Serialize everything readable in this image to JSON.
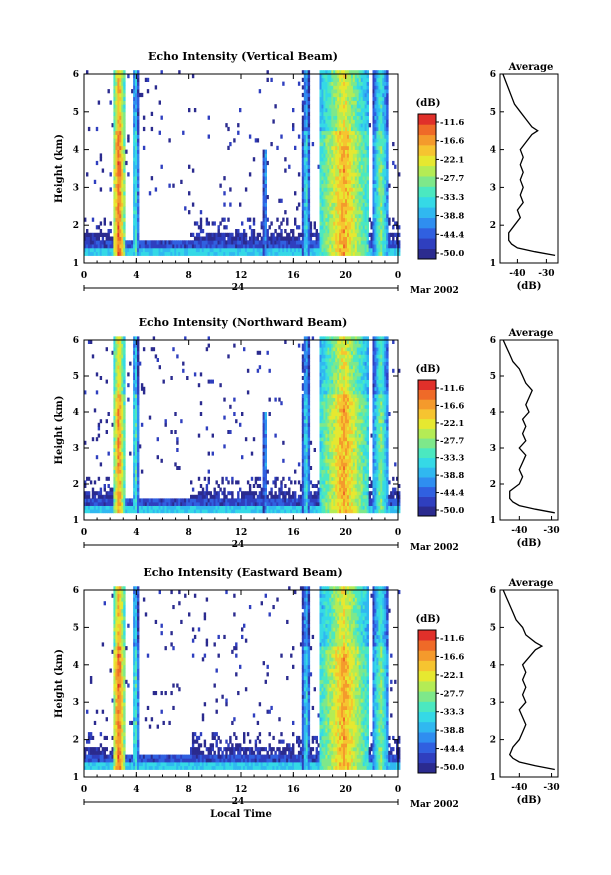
{
  "chart_data": [
    {
      "type": "heatmap",
      "title": "Echo Intensity (Vertical Beam)",
      "ylabel": "Height (km)",
      "xlim": [
        0,
        24
      ],
      "ylim": [
        1,
        6
      ],
      "x_ticks": [
        "0",
        "4",
        "8",
        "12",
        "16",
        "20",
        "0"
      ],
      "y_ticks": [
        "1",
        "2",
        "3",
        "4",
        "5",
        "6"
      ],
      "date_tick": "24",
      "date_label": "Mar 2002",
      "colorbar": {
        "title": "(dB)",
        "labels": [
          "-11.6",
          "-16.6",
          "-22.1",
          "-27.7",
          "-33.3",
          "-38.8",
          "-44.4",
          "-50.0"
        ]
      },
      "rain_events": [
        {
          "start": 2.2,
          "end": 3.0,
          "max_height": 6.0,
          "peak_db": -11.6
        },
        {
          "start": 3.6,
          "end": 4.1,
          "max_height": 6.0,
          "peak_db": -27.7
        },
        {
          "start": 13.6,
          "end": 13.9,
          "max_height": 4.0,
          "peak_db": -33.3
        },
        {
          "start": 16.6,
          "end": 17.2,
          "max_height": 6.0,
          "peak_db": -30.0
        },
        {
          "start": 18.0,
          "end": 21.6,
          "max_height": 6.0,
          "peak_db": -16.6
        },
        {
          "start": 22.0,
          "end": 23.2,
          "max_height": 6.0,
          "peak_db": -25.0
        }
      ],
      "profile": {
        "title": "Average",
        "xlabel": "(dB)",
        "x_ticks": [
          "-40",
          "-30"
        ],
        "xlim": [
          -46,
          -26
        ],
        "heights": [
          1.2,
          1.3,
          1.4,
          1.5,
          1.6,
          1.8,
          2.0,
          2.2,
          2.4,
          2.6,
          2.8,
          3.0,
          3.2,
          3.4,
          3.6,
          3.8,
          4.0,
          4.2,
          4.4,
          4.5,
          4.6,
          4.8,
          5.0,
          5.2,
          5.4,
          5.6,
          5.8,
          6.0
        ],
        "values": [
          -27,
          -34,
          -40,
          -42,
          -43,
          -43,
          -41,
          -39,
          -40,
          -38,
          -39,
          -38,
          -39,
          -38,
          -39,
          -38,
          -39,
          -37,
          -35,
          -33,
          -35,
          -37,
          -39,
          -41,
          -42,
          -43,
          -44,
          -45
        ]
      }
    },
    {
      "type": "heatmap",
      "title": "Echo Intensity (Northward Beam)",
      "ylabel": "Height (km)",
      "xlim": [
        0,
        24
      ],
      "ylim": [
        1,
        6
      ],
      "x_ticks": [
        "0",
        "4",
        "8",
        "12",
        "16",
        "20",
        "0"
      ],
      "y_ticks": [
        "1",
        "2",
        "3",
        "4",
        "5",
        "6"
      ],
      "date_tick": "24",
      "date_label": "Mar 2002",
      "colorbar": {
        "title": "(dB)",
        "labels": [
          "-11.6",
          "-16.6",
          "-22.1",
          "-27.7",
          "-33.3",
          "-38.8",
          "-44.4",
          "-50.0"
        ]
      },
      "rain_events": [
        {
          "start": 2.2,
          "end": 3.0,
          "max_height": 6.0,
          "peak_db": -14.0
        },
        {
          "start": 3.6,
          "end": 4.1,
          "max_height": 6.0,
          "peak_db": -27.7
        },
        {
          "start": 13.6,
          "end": 13.9,
          "max_height": 4.0,
          "peak_db": -33.3
        },
        {
          "start": 16.6,
          "end": 17.2,
          "max_height": 6.0,
          "peak_db": -30.0
        },
        {
          "start": 18.0,
          "end": 21.6,
          "max_height": 6.0,
          "peak_db": -16.6
        },
        {
          "start": 22.0,
          "end": 23.2,
          "max_height": 6.0,
          "peak_db": -25.0
        }
      ],
      "profile": {
        "title": "Average",
        "xlabel": "(dB)",
        "x_ticks": [
          "-40",
          "-30"
        ],
        "xlim": [
          -46,
          -28
        ],
        "heights": [
          1.2,
          1.3,
          1.4,
          1.5,
          1.6,
          1.8,
          2.0,
          2.2,
          2.4,
          2.6,
          2.8,
          3.0,
          3.2,
          3.4,
          3.6,
          3.8,
          4.0,
          4.2,
          4.4,
          4.6,
          4.8,
          5.0,
          5.2,
          5.4,
          5.6,
          5.8,
          6.0
        ],
        "values": [
          -29,
          -35,
          -40,
          -42,
          -43,
          -43,
          -40,
          -39,
          -40,
          -39,
          -38,
          -40,
          -38,
          -39,
          -38,
          -39,
          -37,
          -38,
          -37,
          -36,
          -38,
          -39,
          -40,
          -42,
          -43,
          -44,
          -45
        ]
      }
    },
    {
      "type": "heatmap",
      "title": "Echo Intensity (Eastward Beam)",
      "ylabel": "Height (km)",
      "xlabel": "Local Time",
      "xlim": [
        0,
        24
      ],
      "ylim": [
        1,
        6
      ],
      "x_ticks": [
        "0",
        "4",
        "8",
        "12",
        "16",
        "20",
        "0"
      ],
      "y_ticks": [
        "1",
        "2",
        "3",
        "4",
        "5",
        "6"
      ],
      "date_tick": "24",
      "date_label": "Mar 2002",
      "colorbar": {
        "title": "(dB)",
        "labels": [
          "-11.6",
          "-16.6",
          "-22.1",
          "-27.7",
          "-33.3",
          "-38.8",
          "-44.4",
          "-50.0"
        ]
      },
      "rain_events": [
        {
          "start": 2.2,
          "end": 3.0,
          "max_height": 6.0,
          "peak_db": -11.6
        },
        {
          "start": 3.6,
          "end": 4.1,
          "max_height": 6.0,
          "peak_db": -27.7
        },
        {
          "start": 16.6,
          "end": 17.2,
          "max_height": 6.0,
          "peak_db": -30.0
        },
        {
          "start": 18.0,
          "end": 21.6,
          "max_height": 6.0,
          "peak_db": -16.6
        },
        {
          "start": 22.0,
          "end": 23.2,
          "max_height": 6.0,
          "peak_db": -25.0
        }
      ],
      "profile": {
        "title": "Average",
        "xlabel": "(dB)",
        "x_ticks": [
          "-40",
          "-30"
        ],
        "xlim": [
          -46,
          -28
        ],
        "heights": [
          1.2,
          1.3,
          1.4,
          1.5,
          1.6,
          1.8,
          2.0,
          2.2,
          2.4,
          2.6,
          2.8,
          3.0,
          3.2,
          3.4,
          3.6,
          3.8,
          4.0,
          4.2,
          4.4,
          4.5,
          4.6,
          4.8,
          5.0,
          5.2,
          5.4,
          5.6,
          5.8,
          6.0
        ],
        "values": [
          -29,
          -35,
          -40,
          -42,
          -43,
          -42,
          -40,
          -39,
          -38,
          -39,
          -40,
          -38,
          -39,
          -38,
          -39,
          -38,
          -39,
          -37,
          -35,
          -33,
          -35,
          -38,
          -39,
          -41,
          -42,
          -43,
          -44,
          -45
        ]
      }
    }
  ],
  "colormap": [
    "#2b2b8f",
    "#2f3fbf",
    "#3060e0",
    "#2f8ef0",
    "#30b8f0",
    "#35d9e6",
    "#4be8c0",
    "#7ee88a",
    "#b4ec55",
    "#e6e830",
    "#f6c430",
    "#f49a2c",
    "#ef6a28",
    "#e0302a"
  ]
}
